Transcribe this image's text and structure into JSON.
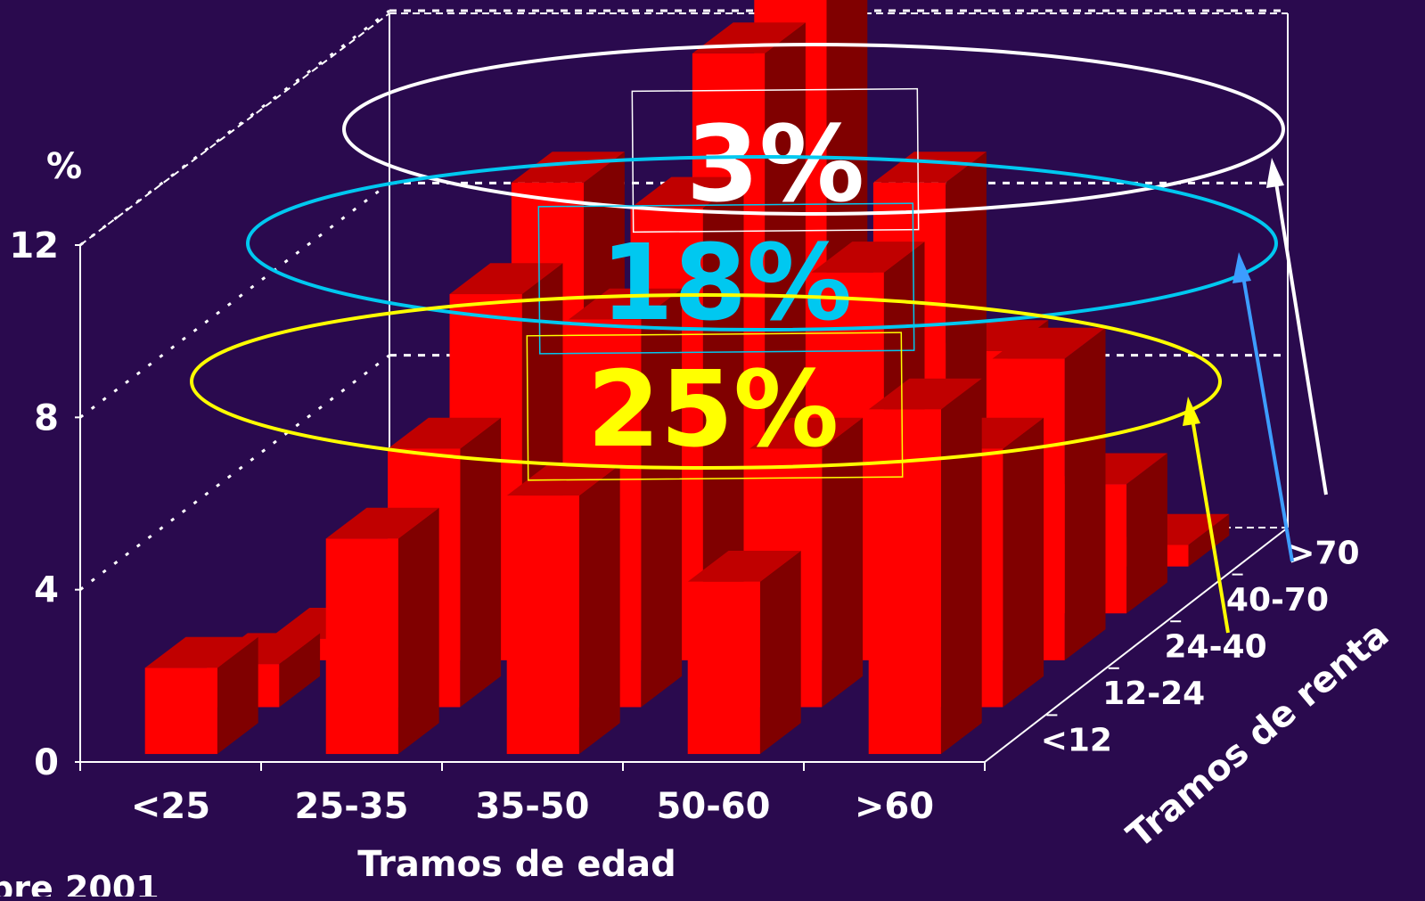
{
  "chart_data": {
    "type": "bar",
    "subtype": "3d-bar",
    "title": "",
    "xlabel": "Tramos de edad",
    "ylabel": "%",
    "zlabel": "Tramos de renta",
    "categories": [
      "<25",
      "25-35",
      "35-50",
      "50-60",
      ">60"
    ],
    "depth_categories": [
      "<12",
      "12-24",
      "24-40",
      "40-70",
      ">70"
    ],
    "y_ticks": [
      "0",
      "4",
      "8",
      "12"
    ],
    "ylim": [
      0,
      12
    ],
    "grid": true,
    "bar_color": "#ff0000",
    "background_color": "#2a0a4e",
    "series": [
      {
        "values": [
          2,
          5,
          6,
          4,
          8
        ]
      },
      {
        "values": [
          1,
          6,
          9,
          6,
          6
        ]
      },
      {
        "values": [
          0.5,
          8.5,
          10.5,
          9,
          7
        ]
      },
      {
        "values": [
          0.5,
          10,
          13,
          10,
          3
        ]
      },
      {
        "values": [
          0,
          3,
          13.5,
          5,
          0.5
        ]
      }
    ],
    "annotations": [
      {
        "text": "3%",
        "color": "#ffffff",
        "depth": ">70"
      },
      {
        "text": "18%",
        "color": "#00c8f0",
        "depth": "40-70"
      },
      {
        "text": "25%",
        "color": "#ffff00",
        "depth": "24-40"
      }
    ],
    "footnote": "bre 2001"
  }
}
